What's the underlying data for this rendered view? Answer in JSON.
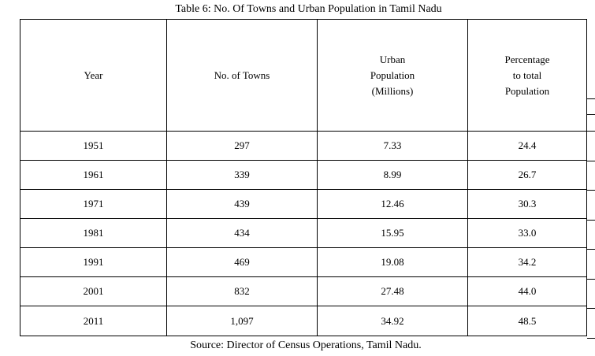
{
  "table": {
    "caption": "Table 6: No. Of Towns and Urban Population in Tamil Nadu",
    "headers": {
      "year": "Year",
      "towns": "No. of Towns",
      "urban": [
        "Urban",
        "Population",
        "(Millions)"
      ],
      "percentage": [
        "Percentage",
        "to total",
        "Population"
      ]
    },
    "rows": [
      {
        "year": "1951",
        "towns": "297",
        "urban": "7.33",
        "percentage": "24.4"
      },
      {
        "year": "1961",
        "towns": "339",
        "urban": "8.99",
        "percentage": "26.7"
      },
      {
        "year": "1971",
        "towns": "439",
        "urban": "12.46",
        "percentage": "30.3"
      },
      {
        "year": "1981",
        "towns": "434",
        "urban": "15.95",
        "percentage": "33.0"
      },
      {
        "year": "1991",
        "towns": "469",
        "urban": "19.08",
        "percentage": "34.2"
      },
      {
        "year": "2001",
        "towns": "832",
        "urban": "27.48",
        "percentage": "44.0"
      },
      {
        "year": "2011",
        "towns": "1,097",
        "urban": "34.92",
        "percentage": "48.5"
      }
    ],
    "source": "Source: Director of Census Operations, Tamil Nadu."
  }
}
